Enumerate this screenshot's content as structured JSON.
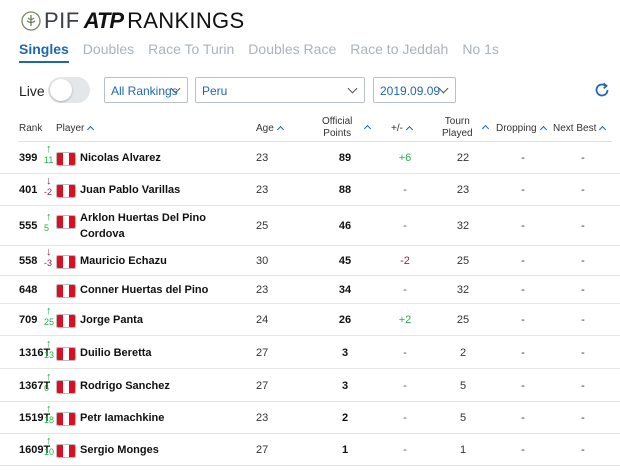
{
  "brand": {
    "pif": "PIF",
    "atp": "ATP",
    "title": "RANKINGS"
  },
  "tabs": [
    "Singles",
    "Doubles",
    "Race To Turin",
    "Doubles Race",
    "Race to Jeddah",
    "No 1s"
  ],
  "controls": {
    "live_label": "Live",
    "live_on": false,
    "ranking_type": "All Rankings",
    "country": "Peru",
    "date": "2019.09.09"
  },
  "headers": {
    "rank": "Rank",
    "player": "Player",
    "age": "Age",
    "points_1": "Official",
    "points_2": "Points",
    "plus_minus": "+/-",
    "tourn_1": "Tourn",
    "tourn_2": "Played",
    "dropping": "Dropping",
    "next_best": "Next Best"
  },
  "rows": [
    {
      "rank": "399",
      "move_dir": "up",
      "move": "11",
      "player": "Nicolas Alvarez",
      "age": "23",
      "points": "89",
      "pm": "+6",
      "played": "22",
      "dropping": "-",
      "next_best": "-"
    },
    {
      "rank": "401",
      "move_dir": "down",
      "move": "-2",
      "player": "Juan Pablo Varillas",
      "age": "23",
      "points": "88",
      "pm": "-",
      "played": "23",
      "dropping": "-",
      "next_best": "-"
    },
    {
      "rank": "555",
      "move_dir": "up",
      "move": "5",
      "player": "Arklon Huertas Del Pino Cordova",
      "age": "25",
      "points": "46",
      "pm": "-",
      "played": "32",
      "dropping": "-",
      "next_best": "-"
    },
    {
      "rank": "558",
      "move_dir": "down",
      "move": "-3",
      "player": "Mauricio Echazu",
      "age": "30",
      "points": "45",
      "pm": "-2",
      "played": "25",
      "dropping": "-",
      "next_best": "-"
    },
    {
      "rank": "648",
      "move_dir": "none",
      "move": "",
      "player": "Conner Huertas del Pino",
      "age": "23",
      "points": "34",
      "pm": "-",
      "played": "32",
      "dropping": "-",
      "next_best": "-"
    },
    {
      "rank": "709",
      "move_dir": "up",
      "move": "25",
      "player": "Jorge Panta",
      "age": "24",
      "points": "26",
      "pm": "+2",
      "played": "25",
      "dropping": "-",
      "next_best": "-"
    },
    {
      "rank": "1316T",
      "move_dir": "up",
      "move": "13",
      "player": "Duilio Beretta",
      "age": "27",
      "points": "3",
      "pm": "-",
      "played": "2",
      "dropping": "-",
      "next_best": "-"
    },
    {
      "rank": "1367T",
      "move_dir": "up",
      "move": "6",
      "player": "Rodrigo Sanchez",
      "age": "27",
      "points": "3",
      "pm": "-",
      "played": "5",
      "dropping": "-",
      "next_best": "-"
    },
    {
      "rank": "1519T",
      "move_dir": "up",
      "move": "18",
      "player": "Petr Iamachkine",
      "age": "23",
      "points": "2",
      "pm": "-",
      "played": "5",
      "dropping": "-",
      "next_best": "-"
    },
    {
      "rank": "1609T",
      "move_dir": "up",
      "move": "10",
      "player": "Sergio Monges",
      "age": "27",
      "points": "1",
      "pm": "-",
      "played": "1",
      "dropping": "-",
      "next_best": "-"
    }
  ],
  "colors": {
    "accent": "#1f67b1",
    "up": "#21b24b",
    "down": "#8b2c43",
    "flag_red": "#d91023"
  }
}
